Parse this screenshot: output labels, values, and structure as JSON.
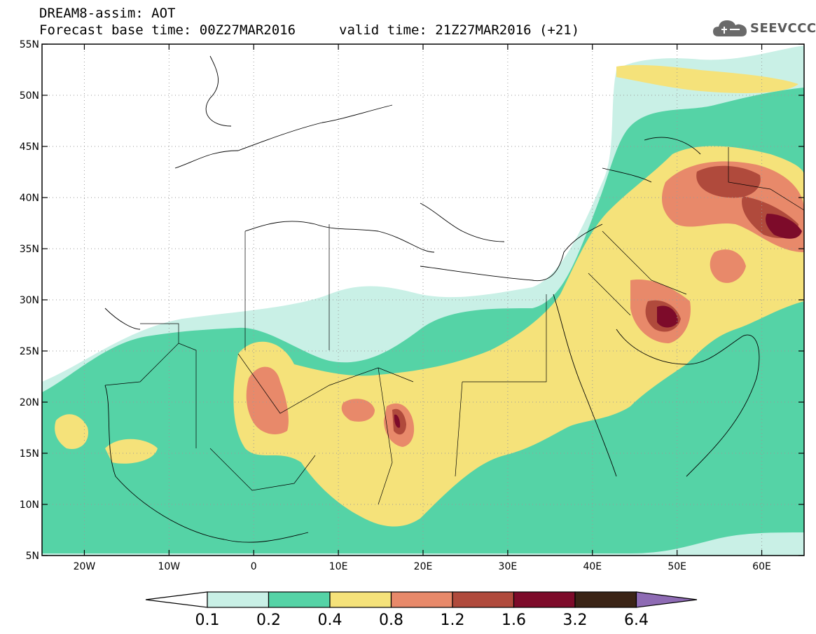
{
  "title": {
    "line1": "DREAM8-assim: AOT",
    "line2": "Forecast base time: 00Z27MAR2016",
    "valid": "valid time: 21Z27MAR2016 (+21)"
  },
  "logo": {
    "text": "SEEVCCC",
    "icon": "cloud-icon"
  },
  "map": {
    "lon_range": [
      -25,
      65
    ],
    "lat_range": [
      5,
      55
    ],
    "lat_labels": [
      "55N",
      "50N",
      "45N",
      "40N",
      "35N",
      "30N",
      "25N",
      "20N",
      "15N",
      "10N",
      "5N"
    ],
    "lon_labels": [
      "20W",
      "10W",
      "0",
      "10E",
      "20E",
      "30E",
      "40E",
      "50E",
      "60E"
    ],
    "grid": true
  },
  "colorbar": {
    "labels": [
      "0.1",
      "0.2",
      "0.4",
      "0.8",
      "1.2",
      "1.6",
      "3.2",
      "6.4"
    ],
    "colors": [
      "#ffffff",
      "#c9f0e6",
      "#55d3a6",
      "#f5e27a",
      "#e8896a",
      "#b04a3c",
      "#7d0b2a",
      "#3b2416",
      "#8e6bb4"
    ]
  }
}
